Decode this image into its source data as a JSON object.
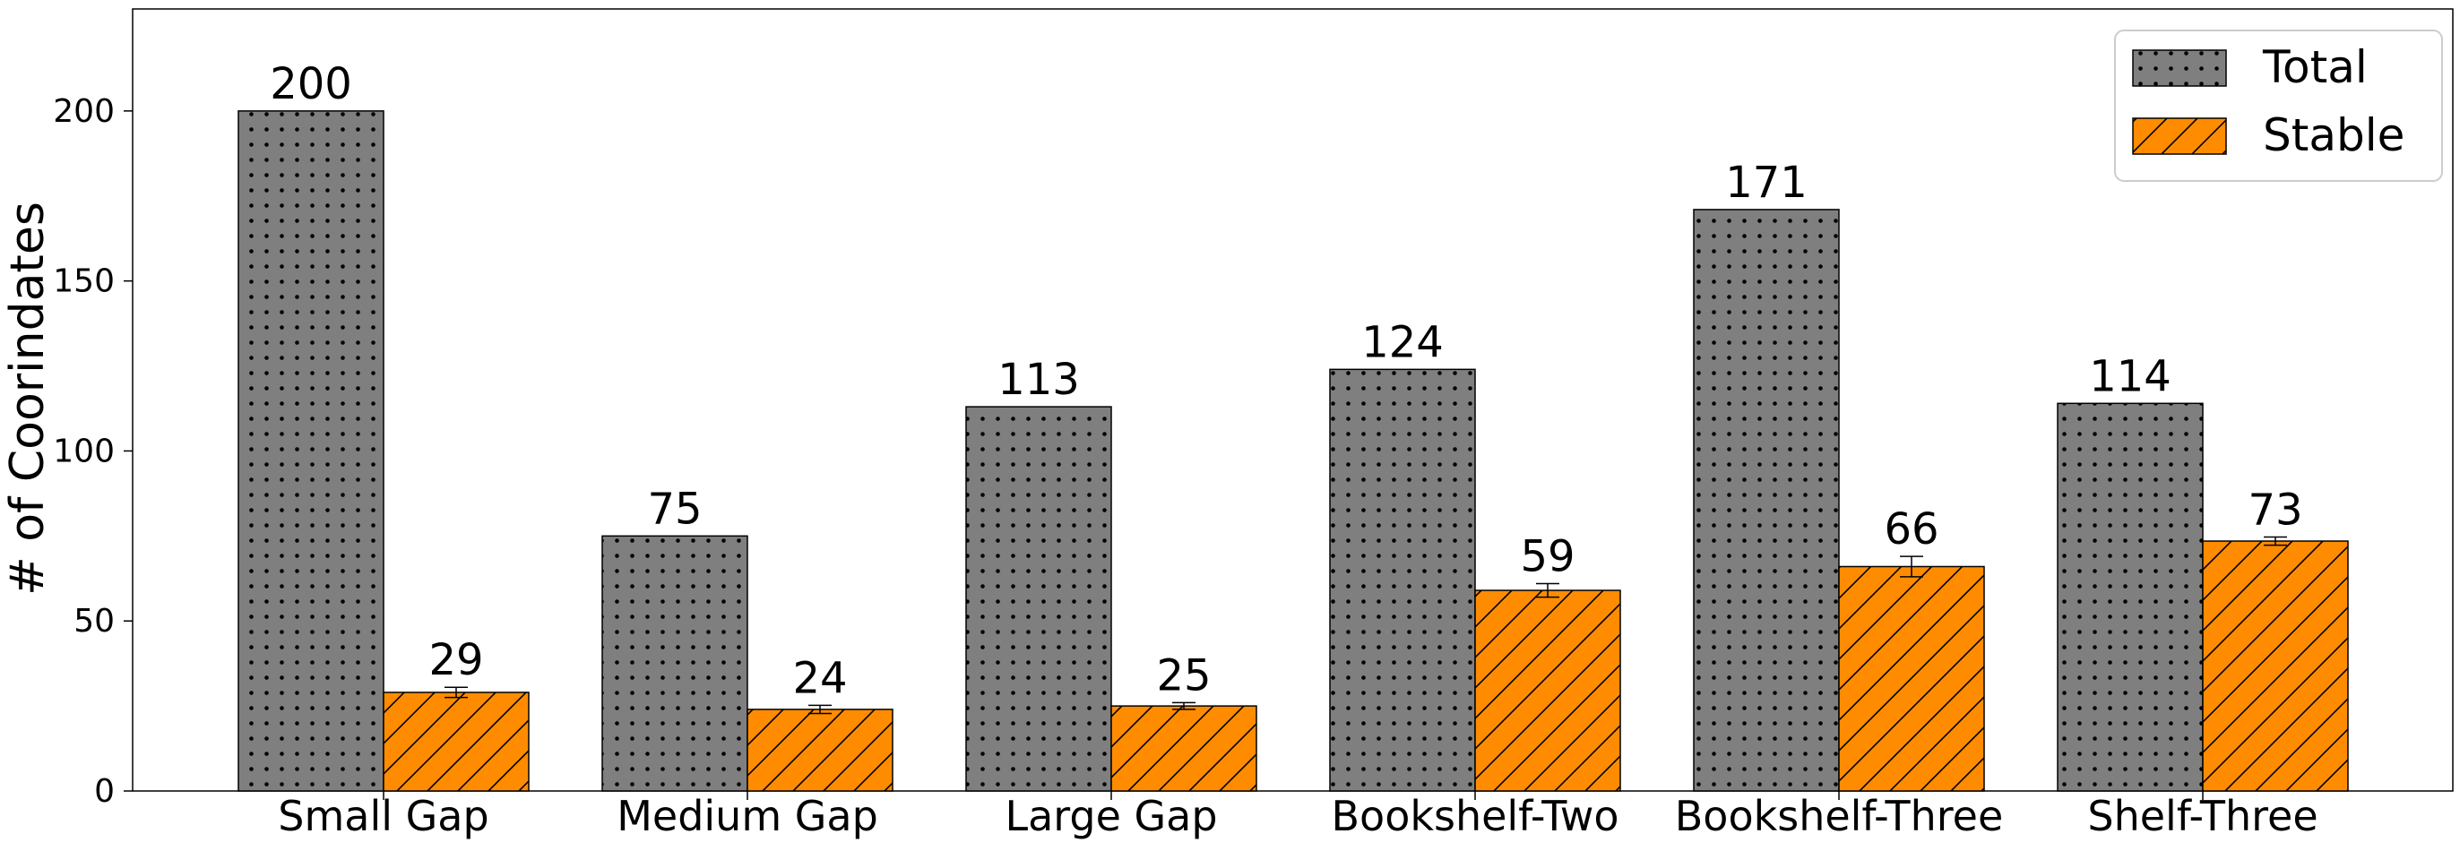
{
  "chart_data": {
    "type": "bar",
    "title": "",
    "xlabel": "",
    "ylabel": "# of Coorindates",
    "ylim": [
      0,
      230
    ],
    "yticks": [
      0,
      50,
      100,
      150,
      200
    ],
    "grid": false,
    "legend_position": "top-right",
    "categories": [
      "Small Gap",
      "Medium Gap",
      "Large Gap",
      "Bookshelf-Two",
      "Bookshelf-Three",
      "Shelf-Three"
    ],
    "series": [
      {
        "name": "Total",
        "values": [
          200,
          75,
          113,
          124,
          171,
          114
        ],
        "labels": [
          "200",
          "75",
          "113",
          "124",
          "171",
          "114"
        ],
        "color": "#7f7f7f",
        "pattern": "dots"
      },
      {
        "name": "Stable",
        "values": [
          29,
          24,
          25,
          59,
          66,
          73.5
        ],
        "labels": [
          "29",
          "24",
          "25",
          "59",
          "66",
          "73"
        ],
        "errors": [
          1.5,
          1.2,
          1.0,
          2.0,
          3.0,
          1.2
        ],
        "color": "#ff8c00",
        "pattern": "hatch"
      }
    ]
  }
}
